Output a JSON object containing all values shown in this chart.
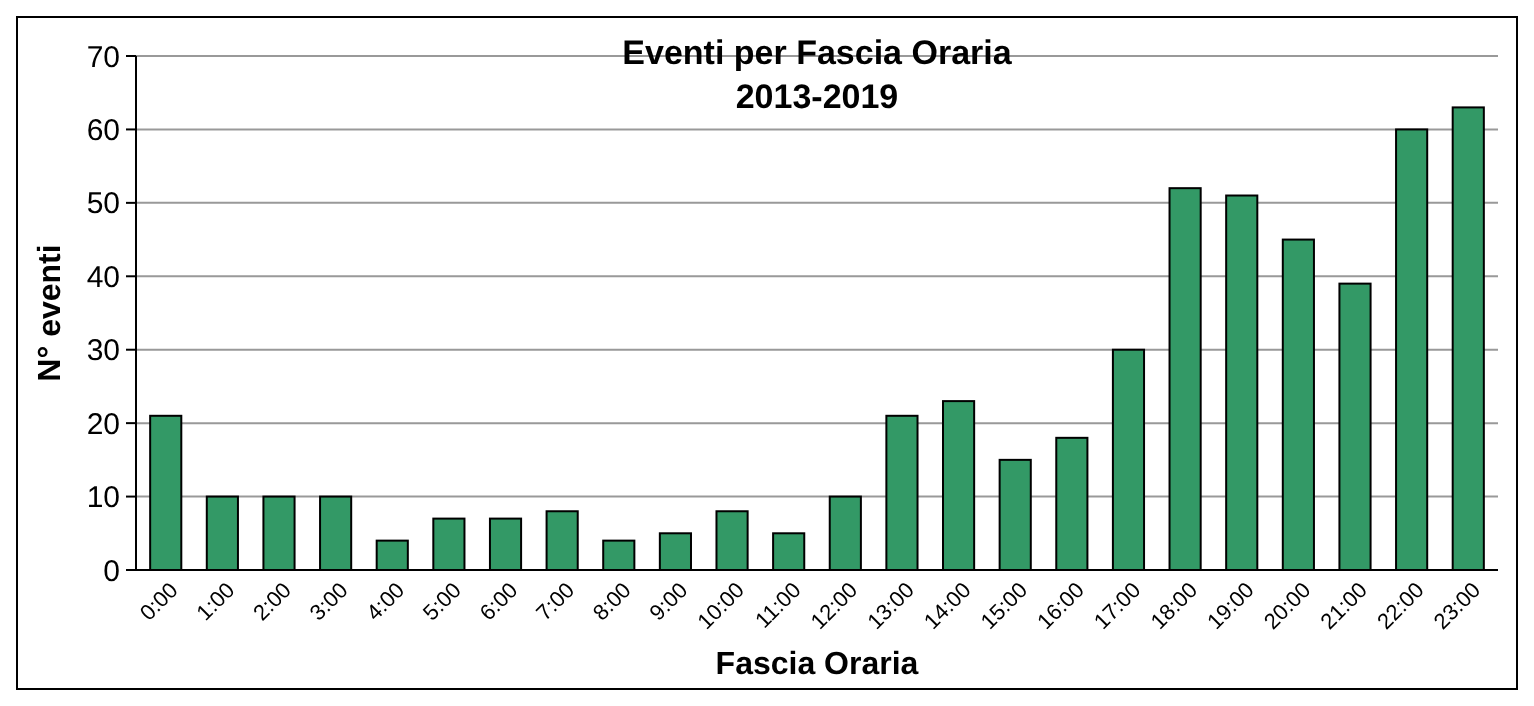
{
  "chart_data": {
    "type": "bar",
    "title": "Eventi per Fascia Oraria",
    "subtitle": "2013-2019",
    "xlabel": "Fascia Oraria",
    "ylabel": "N° eventi",
    "categories": [
      "0:00",
      "1:00",
      "2:00",
      "3:00",
      "4:00",
      "5:00",
      "6:00",
      "7:00",
      "8:00",
      "9:00",
      "10:00",
      "11:00",
      "12:00",
      "13:00",
      "14:00",
      "15:00",
      "16:00",
      "17:00",
      "18:00",
      "19:00",
      "20:00",
      "21:00",
      "22:00",
      "23:00"
    ],
    "values": [
      21,
      10,
      10,
      10,
      4,
      7,
      7,
      8,
      4,
      5,
      8,
      5,
      10,
      21,
      23,
      15,
      18,
      30,
      52,
      51,
      45,
      39,
      60,
      63
    ],
    "color": "#339966",
    "ylim": [
      0,
      70
    ],
    "yticks": [
      0,
      10,
      20,
      30,
      40,
      50,
      60,
      70
    ],
    "grid": "y"
  }
}
